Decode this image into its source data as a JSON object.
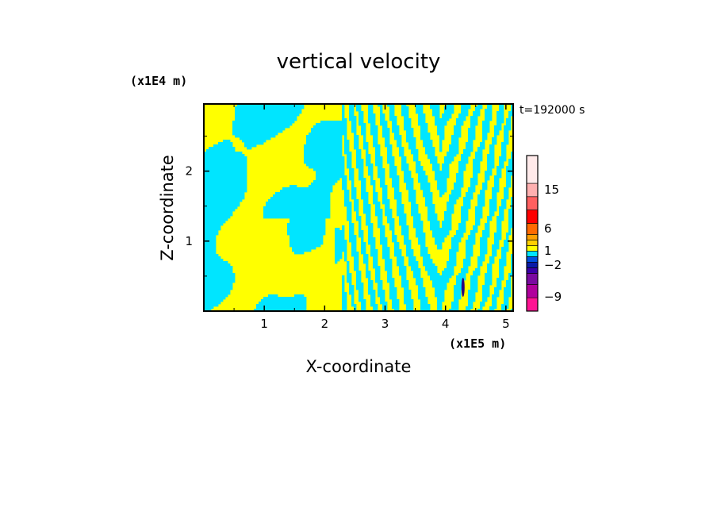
{
  "chart_data": {
    "type": "heatmap",
    "title": "vertical velocity",
    "xlabel": "X-coordinate",
    "ylabel": "Z-coordinate",
    "x_scale_label": "(x1E5 m)",
    "y_scale_label": "(x1E4 m)",
    "time_label": "t=192000 s",
    "xlim": [
      0.0,
      5.12
    ],
    "ylim": [
      0.0,
      2.96
    ],
    "x_ticks": [
      1,
      2,
      3,
      4,
      5
    ],
    "y_ticks": [
      1,
      2
    ],
    "colorbar": {
      "levels": [
        {
          "color": "#ff1493"
        },
        {
          "color": "#b0009c"
        },
        {
          "color": "#7a0aa0"
        },
        {
          "color": "#3a00a8"
        },
        {
          "color": "#0a1aa8"
        },
        {
          "color": "#0050e0"
        },
        {
          "color": "#00e5ff"
        },
        {
          "color": "#ffff00"
        },
        {
          "color": "#ffd000"
        },
        {
          "color": "#ffa000"
        },
        {
          "color": "#ff6a00"
        },
        {
          "color": "#ff0000"
        },
        {
          "color": "#ff6060"
        },
        {
          "color": "#ffb0b0"
        },
        {
          "color": "#ffeaea"
        }
      ],
      "tick_labels": [
        "15",
        "6",
        "1",
        "−2",
        "−9"
      ]
    },
    "palette": {
      "updraft": "#ffff00",
      "downdraft": "#00e5ff",
      "strong_downdraft": "#2a0080"
    }
  }
}
